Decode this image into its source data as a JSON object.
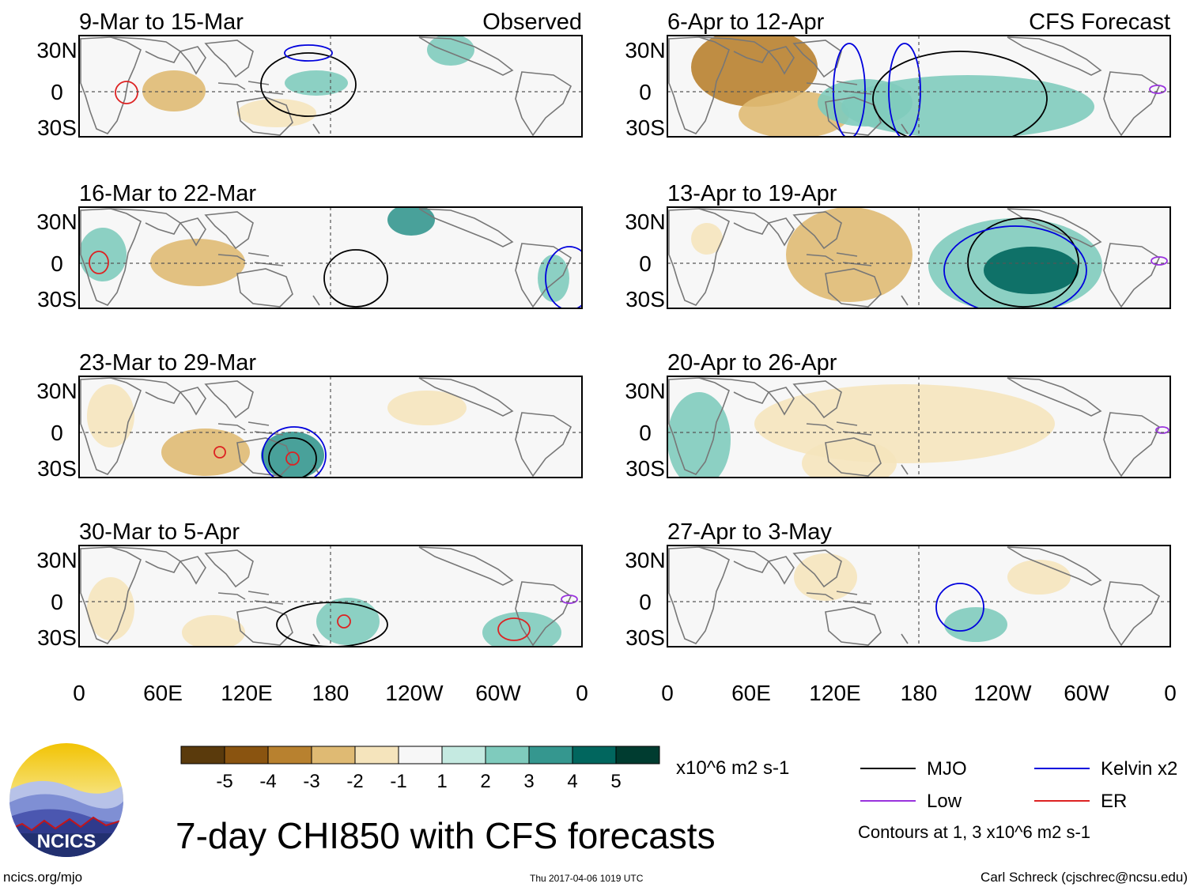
{
  "title": "7-day CHI850 with CFS forecasts",
  "site": "ncics.org/mjo",
  "timestamp": "Thu 2017-04-06 1019 UTC",
  "credit": "Carl Schreck (cjschrec@ncsu.edu)",
  "logo_text": "NCICS",
  "units": "x10^6 m2 s-1",
  "contour_note": "Contours at 1, 3 x10^6 m2 s-1",
  "panels": {
    "observed_label": "Observed",
    "forecast_label": "CFS Forecast",
    "observed": [
      "9-Mar to 15-Mar",
      "16-Mar to 22-Mar",
      "23-Mar to 29-Mar",
      "30-Mar to 5-Apr"
    ],
    "forecast": [
      "6-Apr to 12-Apr",
      "13-Apr to 19-Apr",
      "20-Apr to 26-Apr",
      "27-Apr to 3-May"
    ]
  },
  "lat_labels": [
    "30N",
    "0",
    "30S"
  ],
  "lon_labels": [
    "0",
    "60E",
    "120E",
    "180",
    "120W",
    "60W",
    "0"
  ],
  "colorbar": {
    "colors": [
      "#5a3a0c",
      "#8a5410",
      "#b8812f",
      "#dfba73",
      "#f5e4bc",
      "#f7f7f7",
      "#c5eae1",
      "#7fcbbd",
      "#35978f",
      "#01665e",
      "#003c30"
    ],
    "labels": [
      "-5",
      "-4",
      "-3",
      "-2",
      "-1",
      "1",
      "2",
      "3",
      "4",
      "5"
    ]
  },
  "legend": {
    "items": [
      {
        "label": "MJO",
        "color": "#000000"
      },
      {
        "label": "Kelvin x2",
        "color": "#0000dd"
      },
      {
        "label": "Low",
        "color": "#9933dd"
      },
      {
        "label": "ER",
        "color": "#dd2222"
      }
    ]
  }
}
